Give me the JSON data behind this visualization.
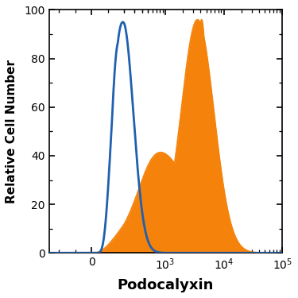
{
  "xlabel": "Podocalyxin",
  "ylabel": "Relative Cell Number",
  "ylim": [
    0,
    100
  ],
  "yticks": [
    0,
    20,
    40,
    60,
    80,
    100
  ],
  "blue_color": "#2060b0",
  "orange_color": "#f5820a",
  "background_color": "#ffffff",
  "linthresh": 200,
  "linscale": 0.5
}
